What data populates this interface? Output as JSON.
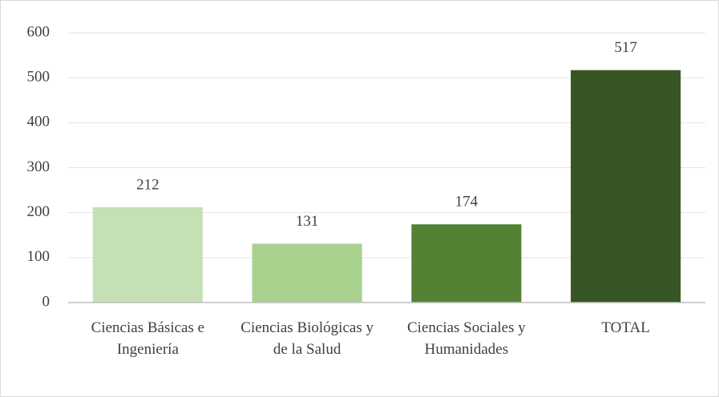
{
  "chart_data": {
    "type": "bar",
    "categories": [
      "Ciencias Básicas e Ingeniería",
      "Ciencias Biológicas y de la Salud",
      "Ciencias Sociales y Humanidades",
      "TOTAL"
    ],
    "values": [
      212,
      131,
      174,
      517
    ],
    "colors": [
      "#c5e0b4",
      "#a9d18e",
      "#548235",
      "#375623"
    ],
    "ylim": [
      0,
      600
    ],
    "yticks": [
      0,
      100,
      200,
      300,
      400,
      500,
      600
    ],
    "grid": true
  }
}
